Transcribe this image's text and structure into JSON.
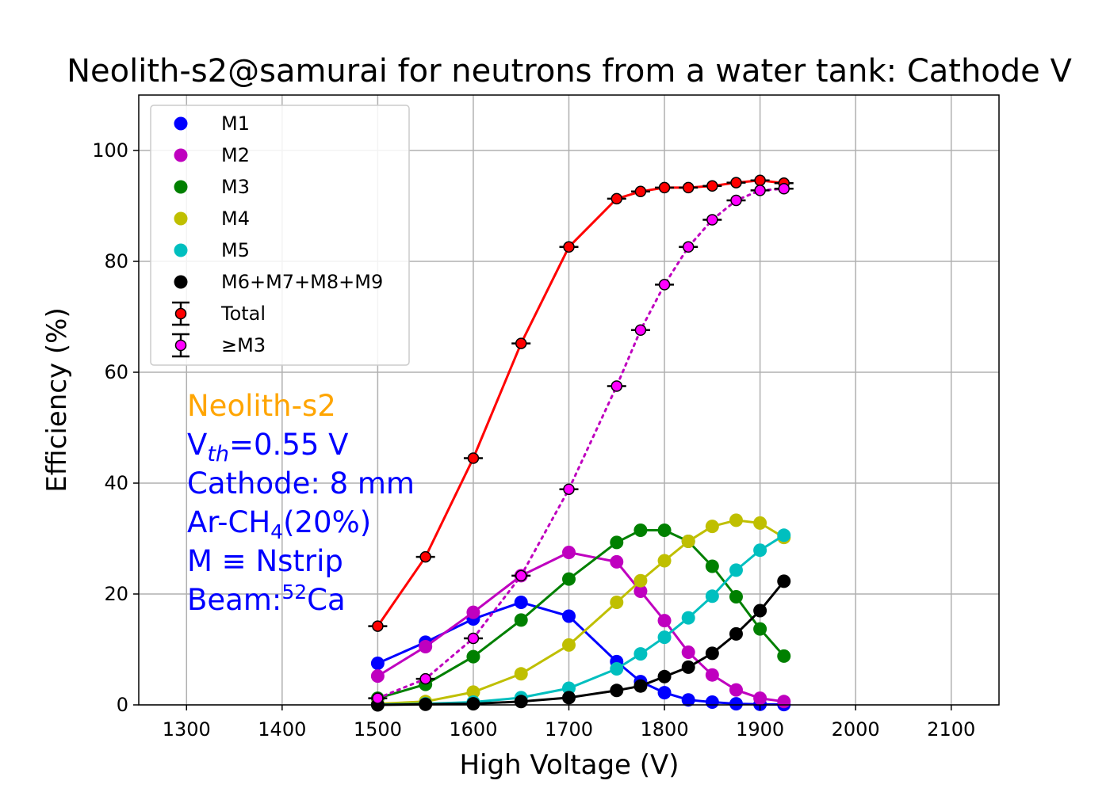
{
  "chart_data": {
    "type": "line",
    "title": "Neolith-s2@samurai for neutrons from a water tank: Cathode V",
    "xlabel": "High Voltage (V)",
    "ylabel": "Efficiency (%)",
    "xlim": [
      1250,
      2150
    ],
    "ylim": [
      0,
      110
    ],
    "xticks": [
      1300,
      1400,
      1500,
      1600,
      1700,
      1800,
      1900,
      2000,
      2100
    ],
    "yticks": [
      0,
      20,
      40,
      60,
      80,
      100
    ],
    "grid": true,
    "legend_position": "upper-left",
    "x": [
      1500,
      1550,
      1600,
      1650,
      1700,
      1750,
      1775,
      1800,
      1825,
      1850,
      1875,
      1900,
      1925
    ],
    "series": [
      {
        "name": "M1",
        "color": "#0000ff",
        "style": "solid",
        "marker": "dot",
        "values": [
          7.5,
          11.3,
          15.5,
          18.5,
          16.0,
          7.8,
          4.2,
          2.2,
          0.9,
          0.5,
          0.2,
          0.1,
          0.05
        ]
      },
      {
        "name": "M2",
        "color": "#bf00bf",
        "style": "solid",
        "marker": "dot",
        "values": [
          5.2,
          10.5,
          16.7,
          23.3,
          27.5,
          25.8,
          20.5,
          15.2,
          9.5,
          5.4,
          2.7,
          1.2,
          0.6
        ]
      },
      {
        "name": "M3",
        "color": "#008000",
        "style": "solid",
        "marker": "dot",
        "values": [
          1.2,
          3.7,
          8.7,
          15.3,
          22.7,
          29.3,
          31.5,
          31.5,
          29.5,
          25.0,
          19.5,
          13.7,
          8.8
        ]
      },
      {
        "name": "M4",
        "color": "#bfbf00",
        "style": "solid",
        "marker": "dot",
        "values": [
          0.2,
          0.6,
          2.3,
          5.6,
          10.8,
          18.5,
          22.4,
          26.0,
          29.5,
          32.2,
          33.3,
          32.8,
          30.2
        ]
      },
      {
        "name": "M5",
        "color": "#00bfbf",
        "style": "solid",
        "marker": "dot",
        "values": [
          0.05,
          0.2,
          0.5,
          1.3,
          3.0,
          6.5,
          9.2,
          12.2,
          15.7,
          19.6,
          24.3,
          27.9,
          30.6
        ]
      },
      {
        "name": "M6+M7+M8+M9",
        "color": "#000000",
        "style": "solid",
        "marker": "dot",
        "values": [
          0.0,
          0.1,
          0.2,
          0.6,
          1.3,
          2.6,
          3.4,
          5.1,
          6.8,
          9.3,
          12.8,
          17.0,
          22.3
        ]
      },
      {
        "name": "Total",
        "color": "#ff0000",
        "style": "solid",
        "marker": "errorbar",
        "values": [
          14.2,
          26.7,
          44.5,
          65.2,
          82.6,
          91.3,
          92.6,
          93.3,
          93.3,
          93.6,
          94.2,
          94.6,
          94.1
        ]
      },
      {
        "name": "≥M3",
        "color": "#ff00ff",
        "style": "dotted",
        "marker": "errorbar",
        "values": [
          1.2,
          4.7,
          12.0,
          23.3,
          38.9,
          57.5,
          67.6,
          75.8,
          82.6,
          87.5,
          91.0,
          92.8,
          93.1
        ]
      }
    ],
    "annotations": {
      "detector": "Neolith-s2",
      "vth_prefix": "V",
      "vth_sub": "th",
      "vth_value": "=0.55 V",
      "cathode": "Cathode: 8 mm",
      "gas_prefix": "Ar-CH",
      "gas_sub": "4",
      "gas_suffix": "(20%)",
      "mdef": "M ≡ Nstrip",
      "beam_prefix": "Beam:",
      "beam_sup": "52",
      "beam_suffix": "Ca",
      "detector_color": "#ffa500",
      "text_color": "#0000ff"
    }
  }
}
